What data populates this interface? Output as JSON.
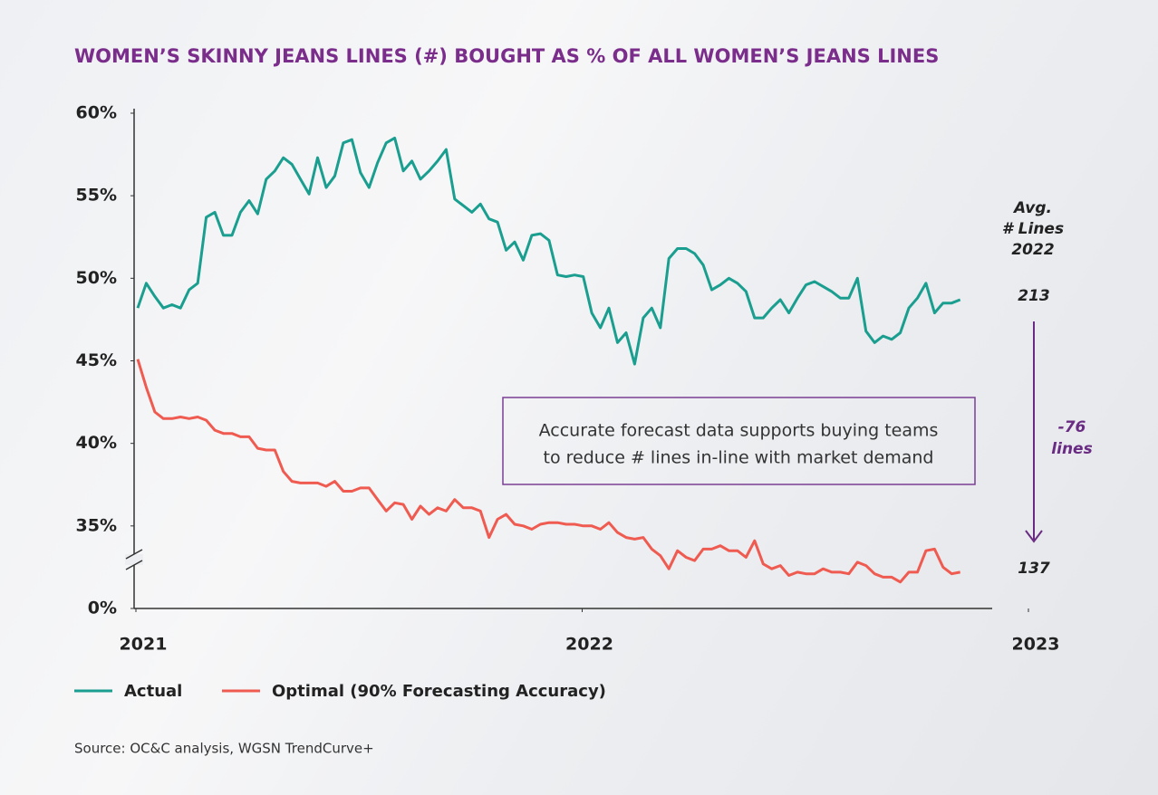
{
  "chart_data": {
    "type": "line",
    "title": "WOMEN’S SKINNY JEANS LINES (#) BOUGHT AS % OF ALL WOMEN’S JEANS LINES",
    "x": [
      2021.004,
      2021.0232,
      2021.0424,
      2021.0616,
      2021.0808,
      2021.1,
      2021.1192,
      2021.1384,
      2021.1576,
      2021.1768,
      2021.196,
      2021.2152,
      2021.2344,
      2021.2536,
      2021.2728,
      2021.292,
      2021.3112,
      2021.3304,
      2021.3496,
      2021.3688,
      2021.388,
      2021.4072,
      2021.4264,
      2021.4456,
      2021.4648,
      2021.484,
      2021.5032,
      2021.5224,
      2021.5416,
      2021.5608,
      2021.58,
      2021.5992,
      2021.6184,
      2021.6376,
      2021.6568,
      2021.676,
      2021.6952,
      2021.7144,
      2021.7336,
      2021.7528,
      2021.772,
      2021.7912,
      2021.8104,
      2021.8296,
      2021.8488,
      2021.868,
      2021.8872,
      2021.9064,
      2021.9256,
      2021.9448,
      2021.964,
      2021.9832,
      2022.0024,
      2022.0216,
      2022.0408,
      2022.06,
      2022.0792,
      2022.0984,
      2022.1176,
      2022.1368,
      2022.156,
      2022.1752,
      2022.1944,
      2022.2136,
      2022.2328,
      2022.252,
      2022.2712,
      2022.2904,
      2022.3096,
      2022.3288,
      2022.348,
      2022.3672,
      2022.3864,
      2022.4056,
      2022.4248,
      2022.444,
      2022.4632,
      2022.4824,
      2022.5016,
      2022.5208,
      2022.54,
      2022.5592,
      2022.5784,
      2022.5976,
      2022.6168,
      2022.636,
      2022.6552,
      2022.6744,
      2022.6936,
      2022.7128,
      2022.732,
      2022.7512,
      2022.7704,
      2022.7896,
      2022.8088,
      2022.828,
      2022.8472
    ],
    "series": [
      {
        "name": "Actual",
        "color": "#1a9e8f",
        "values": [
          48.2,
          49.7,
          48.9,
          48.2,
          48.4,
          48.2,
          49.3,
          49.7,
          53.7,
          54.0,
          52.6,
          52.6,
          54.0,
          54.7,
          53.9,
          56.0,
          56.5,
          57.3,
          56.9,
          56.0,
          55.1,
          57.3,
          55.5,
          56.2,
          58.2,
          58.4,
          56.4,
          55.5,
          57.0,
          58.2,
          58.5,
          56.5,
          57.1,
          56.0,
          56.5,
          57.1,
          57.8,
          54.8,
          54.4,
          54.0,
          54.5,
          53.6,
          53.4,
          51.7,
          52.2,
          51.1,
          52.6,
          52.7,
          52.3,
          50.2,
          50.1,
          50.2,
          50.1,
          47.9,
          47.0,
          48.2,
          46.1,
          46.7,
          44.8,
          47.6,
          48.2,
          47.0,
          51.2,
          51.8,
          51.8,
          51.5,
          50.8,
          49.3,
          49.6,
          50.0,
          49.7,
          49.2,
          47.6,
          47.6,
          48.2,
          48.7,
          47.9,
          48.8,
          49.6,
          49.8,
          49.5,
          49.2,
          48.8,
          48.8,
          50.0,
          46.8,
          46.1,
          46.5,
          46.3,
          46.7,
          48.2,
          48.8,
          49.7,
          47.9,
          48.5,
          48.5,
          48.7
        ]
      },
      {
        "name": "Optimal (90% Forecasting Accuracy)",
        "color": "#ef5b50",
        "values": [
          45.1,
          43.4,
          41.9,
          41.5,
          41.5,
          41.6,
          41.5,
          41.6,
          41.4,
          40.8,
          40.6,
          40.6,
          40.4,
          40.4,
          39.7,
          39.6,
          39.6,
          38.3,
          37.7,
          37.6,
          37.6,
          37.6,
          37.4,
          37.7,
          37.1,
          37.1,
          37.3,
          37.3,
          36.6,
          35.9,
          36.4,
          36.3,
          35.4,
          36.2,
          35.7,
          36.1,
          35.9,
          36.6,
          36.1,
          36.1,
          35.9,
          34.3,
          35.4,
          35.7,
          35.1,
          35.0,
          34.8,
          35.1,
          35.2,
          35.2,
          35.1,
          35.1,
          35.0,
          35.0,
          34.8,
          35.2,
          34.6,
          34.3,
          34.2,
          34.3,
          33.6,
          33.2,
          32.4,
          33.5,
          33.1,
          32.9,
          33.6,
          33.6,
          33.8,
          33.5,
          33.5,
          33.1,
          34.1,
          32.7,
          32.4,
          32.6,
          32.0,
          32.2,
          32.1,
          32.1,
          32.4,
          32.2,
          32.2,
          32.1,
          32.8,
          32.6,
          32.1,
          31.9,
          31.9,
          31.6,
          32.2,
          32.2,
          33.5,
          33.6,
          32.5,
          32.1,
          32.2
        ]
      }
    ],
    "xlim": [
      2021,
      2023
    ],
    "xticks": [
      2021,
      2022,
      2023
    ],
    "ylim": [
      0,
      60
    ],
    "y_break": [
      0,
      30
    ],
    "yticks": [
      {
        "value": 0,
        "label": "0%"
      },
      {
        "value": 35,
        "label": "35%"
      },
      {
        "value": 40,
        "label": "40%"
      },
      {
        "value": 45,
        "label": "45%"
      },
      {
        "value": 50,
        "label": "50%"
      },
      {
        "value": 55,
        "label": "55%"
      },
      {
        "value": 60,
        "label": "60%"
      }
    ],
    "annotation": [
      "Accurate forecast data supports buying teams",
      "to reduce # lines in-line with market demand"
    ],
    "side_heading": [
      "Avg.",
      "# Lines",
      "2022"
    ],
    "start_lines": 213,
    "end_lines": 137,
    "change": [
      "-76",
      "lines"
    ],
    "source": "Source: OC&C analysis, WGSN TrendCurve+"
  }
}
